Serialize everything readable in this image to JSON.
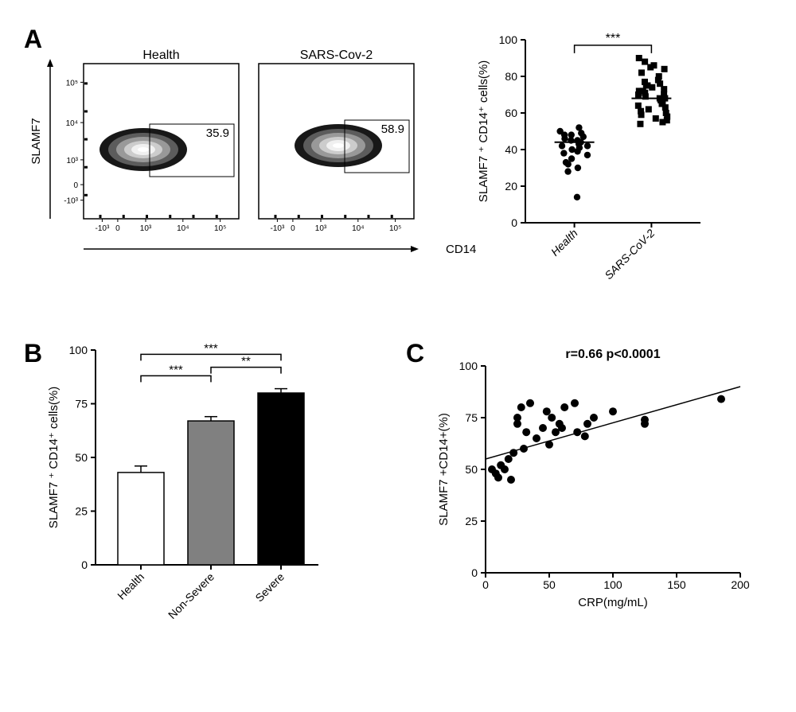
{
  "panelA": {
    "label": "A",
    "flow1": {
      "title": "Health",
      "gateValue": "35.9",
      "yAxis": "SLAMF7",
      "xAxis": "CD14",
      "yTicks": [
        "-10³",
        "0",
        "10³",
        "10⁴",
        "10⁵"
      ],
      "xTicks": [
        "-10³",
        "0",
        "10³",
        "10⁴",
        "10⁵"
      ]
    },
    "flow2": {
      "title": "SARS-Cov-2",
      "gateValue": "58.9",
      "xTicks": [
        "-10³",
        "0",
        "10³",
        "10⁴",
        "10⁵"
      ]
    },
    "scatter": {
      "yAxis": "SLAMF7 ⁺ CD14⁺ cells(%)",
      "ylim": [
        0,
        100
      ],
      "yTicks": [
        0,
        20,
        40,
        60,
        80,
        100
      ],
      "categories": [
        "Health",
        "SARS-CoV-2"
      ],
      "sig": "***",
      "health": [
        44,
        42,
        48,
        50,
        38,
        32,
        28,
        45,
        47,
        43,
        40,
        35,
        30,
        52,
        14,
        48,
        46,
        41,
        39,
        37,
        33,
        49,
        45,
        42
      ],
      "covid": [
        68,
        72,
        75,
        62,
        58,
        88,
        85,
        80,
        78,
        65,
        60,
        55,
        70,
        73,
        76,
        82,
        67,
        63,
        59,
        90,
        66,
        69,
        71,
        74,
        77,
        64,
        61,
        57,
        84,
        86,
        68,
        72,
        56,
        54,
        70,
        75
      ]
    }
  },
  "panelB": {
    "label": "B",
    "yAxis": "SLAMF7 ⁺ CD14⁺ cells(%)",
    "ylim": [
      0,
      100
    ],
    "yTicks": [
      0,
      25,
      50,
      75,
      100
    ],
    "categories": [
      "Health",
      "Non-Severe",
      "Severe"
    ],
    "values": [
      43,
      67,
      80
    ],
    "errors": [
      3,
      2,
      2
    ],
    "colors": [
      "#ffffff",
      "#808080",
      "#000000"
    ],
    "sig01": "***",
    "sig12": "**",
    "sig02": "***"
  },
  "panelC": {
    "label": "C",
    "stats": "r=0.66  p<0.0001",
    "yAxis": "SLAMF7 +CD14+(%)",
    "xAxis": "CRP(mg/mL)",
    "ylim": [
      0,
      100
    ],
    "yTicks": [
      0,
      25,
      50,
      75,
      100
    ],
    "xlim": [
      0,
      200
    ],
    "xTicks": [
      0,
      50,
      100,
      150,
      200
    ],
    "points": [
      [
        5,
        50
      ],
      [
        8,
        48
      ],
      [
        10,
        46
      ],
      [
        12,
        52
      ],
      [
        15,
        50
      ],
      [
        18,
        55
      ],
      [
        20,
        45
      ],
      [
        22,
        58
      ],
      [
        25,
        75
      ],
      [
        25,
        72
      ],
      [
        28,
        80
      ],
      [
        30,
        60
      ],
      [
        32,
        68
      ],
      [
        35,
        82
      ],
      [
        40,
        65
      ],
      [
        45,
        70
      ],
      [
        48,
        78
      ],
      [
        50,
        62
      ],
      [
        52,
        75
      ],
      [
        55,
        68
      ],
      [
        58,
        72
      ],
      [
        60,
        70
      ],
      [
        62,
        80
      ],
      [
        70,
        82
      ],
      [
        72,
        68
      ],
      [
        80,
        72
      ],
      [
        78,
        66
      ],
      [
        85,
        75
      ],
      [
        100,
        78
      ],
      [
        125,
        74
      ],
      [
        125,
        72
      ],
      [
        185,
        84
      ]
    ],
    "slope": 0.175,
    "intercept": 55
  }
}
